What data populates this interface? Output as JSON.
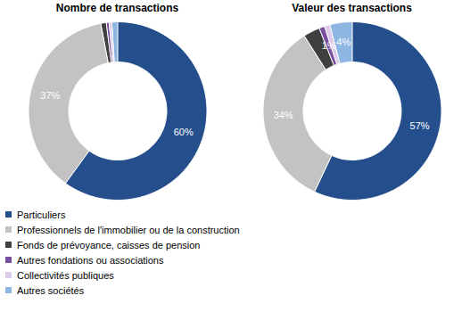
{
  "chart_data": [
    {
      "type": "donut",
      "title": "Nombre de transactions",
      "categories": [
        "Particuliers",
        "Professionnels de l'immobilier ou de la construction",
        "Fonds de prévoyance, caisses de pension",
        "Autres fondations ou associations",
        "Collectivités publiques",
        "Autres sociétés"
      ],
      "values": [
        60,
        37,
        1,
        0.5,
        0.5,
        1
      ],
      "value_labels": [
        "60%",
        "37%",
        null,
        null,
        null,
        null
      ],
      "colors": [
        "#254f8c",
        "#c3c3c3",
        "#404040",
        "#7b4fa0",
        "#dccbea",
        "#8eb6e3"
      ],
      "data_labels": true,
      "legend": "bottom"
    },
    {
      "type": "donut",
      "title": "Valeur des transactions",
      "categories": [
        "Particuliers",
        "Professionnels de l'immobilier ou de la construction",
        "Fonds de prévoyance, caisses de pension",
        "Autres fondations ou associations",
        "Collectivités publiques",
        "Autres sociétés"
      ],
      "values": [
        57,
        34,
        3,
        1,
        1,
        4
      ],
      "value_labels": [
        "57%",
        "34%",
        null,
        "1%",
        null,
        "4%"
      ],
      "colors": [
        "#254f8c",
        "#c3c3c3",
        "#404040",
        "#7b4fa0",
        "#dccbea",
        "#8eb6e3"
      ],
      "data_labels": true,
      "legend": "bottom"
    }
  ]
}
